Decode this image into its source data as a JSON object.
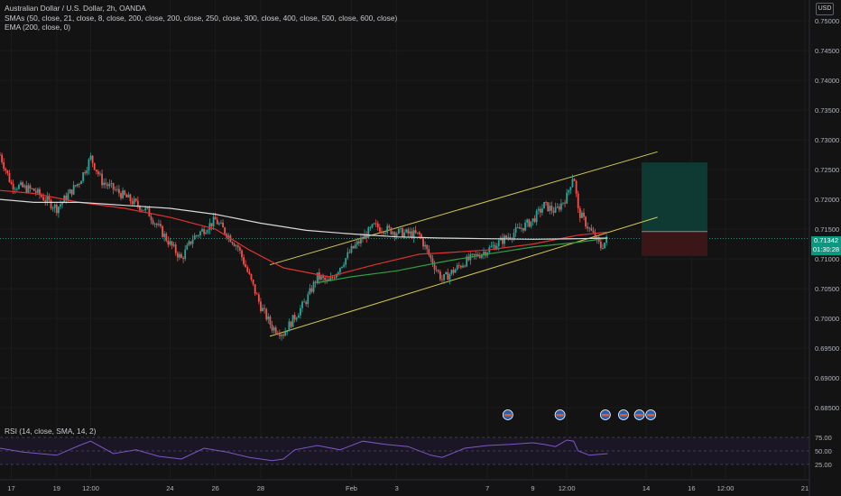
{
  "header": {
    "title": "Australian Dollar / U.S. Dollar, 2h, OANDA",
    "indicators": [
      "SMAs (50, close, 21, close, 8, close, 200, close, 200, close, 250, close, 300, close, 400, close, 500, close, 600, close)",
      "EMA (200, close, 0)"
    ],
    "currency": "USD"
  },
  "last_price": {
    "value": "0.71342",
    "countdown": "01:30:28"
  },
  "rsi": {
    "label": "RSI (14, close, SMA, 14, 2)",
    "ticks": [
      "75.00",
      "50.00",
      "25.00"
    ]
  },
  "colors": {
    "background": "#131313",
    "up_candle": "#26a69a",
    "down_candle": "#ef5350",
    "sma_red": "#e03131",
    "sma_green": "#2e9e44",
    "ema_white": "#d8d8d8",
    "channel": "#d4c94a",
    "rsi_line": "#7e57c2"
  },
  "chart_data": {
    "type": "candlestick",
    "title": "Australian Dollar / U.S. Dollar, 2h, OANDA",
    "y_ticks": [
      "0.75000",
      "0.74500",
      "0.74000",
      "0.73500",
      "0.73000",
      "0.72500",
      "0.72000",
      "0.71500",
      "0.71000",
      "0.70500",
      "0.70000",
      "0.69500",
      "0.69000",
      "0.68500"
    ],
    "ylim": [
      0.6835,
      0.7535
    ],
    "x_ticks": [
      {
        "label": "17",
        "day": 17
      },
      {
        "label": "19",
        "day": 19
      },
      {
        "label": "12:00",
        "day": 20.5
      },
      {
        "label": "24",
        "day": 24
      },
      {
        "label": "26",
        "day": 26
      },
      {
        "label": "28",
        "day": 28
      },
      {
        "label": "Feb",
        "day": 32
      },
      {
        "label": "3",
        "day": 34
      },
      {
        "label": "7",
        "day": 38
      },
      {
        "label": "9",
        "day": 40
      },
      {
        "label": "12:00",
        "day": 41.5
      },
      {
        "label": "14",
        "day": 45
      },
      {
        "label": "16",
        "day": 47
      },
      {
        "label": "12:00",
        "day": 48.5
      },
      {
        "label": "21",
        "day": 52
      }
    ],
    "xlim": [
      16.5,
      52.2
    ],
    "price_path": [
      [
        16.5,
        0.7275
      ],
      [
        17,
        0.7225
      ],
      [
        18,
        0.7215
      ],
      [
        19,
        0.7185
      ],
      [
        20,
        0.723
      ],
      [
        20.5,
        0.727
      ],
      [
        21,
        0.723
      ],
      [
        22,
        0.7205
      ],
      [
        23,
        0.718
      ],
      [
        24,
        0.7125
      ],
      [
        24.5,
        0.71
      ],
      [
        25,
        0.7135
      ],
      [
        26,
        0.7165
      ],
      [
        27,
        0.712
      ],
      [
        27.5,
        0.707
      ],
      [
        28,
        0.702
      ],
      [
        28.5,
        0.6985
      ],
      [
        29,
        0.6975
      ],
      [
        30,
        0.703
      ],
      [
        30.5,
        0.707
      ],
      [
        31,
        0.706
      ],
      [
        32,
        0.7115
      ],
      [
        33,
        0.7155
      ],
      [
        34,
        0.7145
      ],
      [
        35,
        0.714
      ],
      [
        35.5,
        0.71
      ],
      [
        36,
        0.7065
      ],
      [
        37,
        0.7095
      ],
      [
        38,
        0.7115
      ],
      [
        39,
        0.714
      ],
      [
        40,
        0.7165
      ],
      [
        40.5,
        0.719
      ],
      [
        41,
        0.718
      ],
      [
        41.5,
        0.7205
      ],
      [
        41.8,
        0.7245
      ],
      [
        42,
        0.718
      ],
      [
        42.5,
        0.715
      ],
      [
        43,
        0.712
      ],
      [
        43.3,
        0.7134
      ]
    ],
    "series": [
      {
        "name": "SMA",
        "color": "#e03131",
        "values": [
          [
            16.5,
            0.7215
          ],
          [
            18,
            0.721
          ],
          [
            20,
            0.7195
          ],
          [
            22,
            0.7185
          ],
          [
            24,
            0.717
          ],
          [
            26,
            0.715
          ],
          [
            27.5,
            0.7115
          ],
          [
            29,
            0.7085
          ],
          [
            31,
            0.707
          ],
          [
            33,
            0.709
          ],
          [
            35,
            0.7108
          ],
          [
            36,
            0.711
          ],
          [
            38,
            0.7115
          ],
          [
            40,
            0.7125
          ],
          [
            42,
            0.714
          ],
          [
            43.3,
            0.7145
          ]
        ]
      },
      {
        "name": "SMA",
        "color": "#2e9e44",
        "values": [
          [
            30.5,
            0.706
          ],
          [
            32,
            0.707
          ],
          [
            34,
            0.708
          ],
          [
            36,
            0.7095
          ],
          [
            38,
            0.7108
          ],
          [
            40,
            0.712
          ],
          [
            42,
            0.7128
          ],
          [
            43.3,
            0.7135
          ]
        ]
      },
      {
        "name": "EMA",
        "color": "#d8d8d8",
        "values": [
          [
            16.5,
            0.72
          ],
          [
            18,
            0.7195
          ],
          [
            20,
            0.7195
          ],
          [
            22,
            0.719
          ],
          [
            24,
            0.7185
          ],
          [
            26,
            0.7175
          ],
          [
            28,
            0.716
          ],
          [
            30,
            0.7148
          ],
          [
            32,
            0.7142
          ],
          [
            34,
            0.7137
          ],
          [
            36,
            0.7135
          ],
          [
            38,
            0.7134
          ],
          [
            40,
            0.7133
          ],
          [
            42,
            0.7134
          ],
          [
            43.3,
            0.7135
          ]
        ]
      }
    ],
    "channel": {
      "upper": [
        [
          28.4,
          0.709
        ],
        [
          45.5,
          0.728
        ]
      ],
      "lower": [
        [
          28.4,
          0.697
        ],
        [
          45.5,
          0.717
        ]
      ]
    },
    "position": {
      "entry": 0.7146,
      "target": 0.7262,
      "stop": 0.7105,
      "x_range": [
        44.8,
        47.7
      ]
    },
    "event_markers": [
      38.9,
      41.2,
      43.2,
      44.0,
      44.7,
      45.2
    ],
    "rsi": {
      "ylim": [
        0,
        100
      ],
      "levels": [
        75,
        50,
        25
      ],
      "values": [
        [
          16.5,
          55
        ],
        [
          17.5,
          48
        ],
        [
          19,
          42
        ],
        [
          20,
          60
        ],
        [
          20.5,
          68
        ],
        [
          21.5,
          45
        ],
        [
          22.5,
          52
        ],
        [
          23.5,
          40
        ],
        [
          24.5,
          35
        ],
        [
          25.5,
          55
        ],
        [
          26.5,
          48
        ],
        [
          27.5,
          38
        ],
        [
          28.5,
          32
        ],
        [
          29,
          35
        ],
        [
          29.5,
          52
        ],
        [
          30.5,
          60
        ],
        [
          31.5,
          52
        ],
        [
          32.5,
          68
        ],
        [
          33.5,
          62
        ],
        [
          34.5,
          58
        ],
        [
          35.5,
          42
        ],
        [
          36,
          38
        ],
        [
          37,
          55
        ],
        [
          38,
          60
        ],
        [
          39,
          62
        ],
        [
          40,
          65
        ],
        [
          40.5,
          62
        ],
        [
          41,
          58
        ],
        [
          41.5,
          70
        ],
        [
          41.8,
          68
        ],
        [
          42,
          50
        ],
        [
          42.5,
          42
        ],
        [
          43.3,
          45
        ]
      ]
    }
  }
}
